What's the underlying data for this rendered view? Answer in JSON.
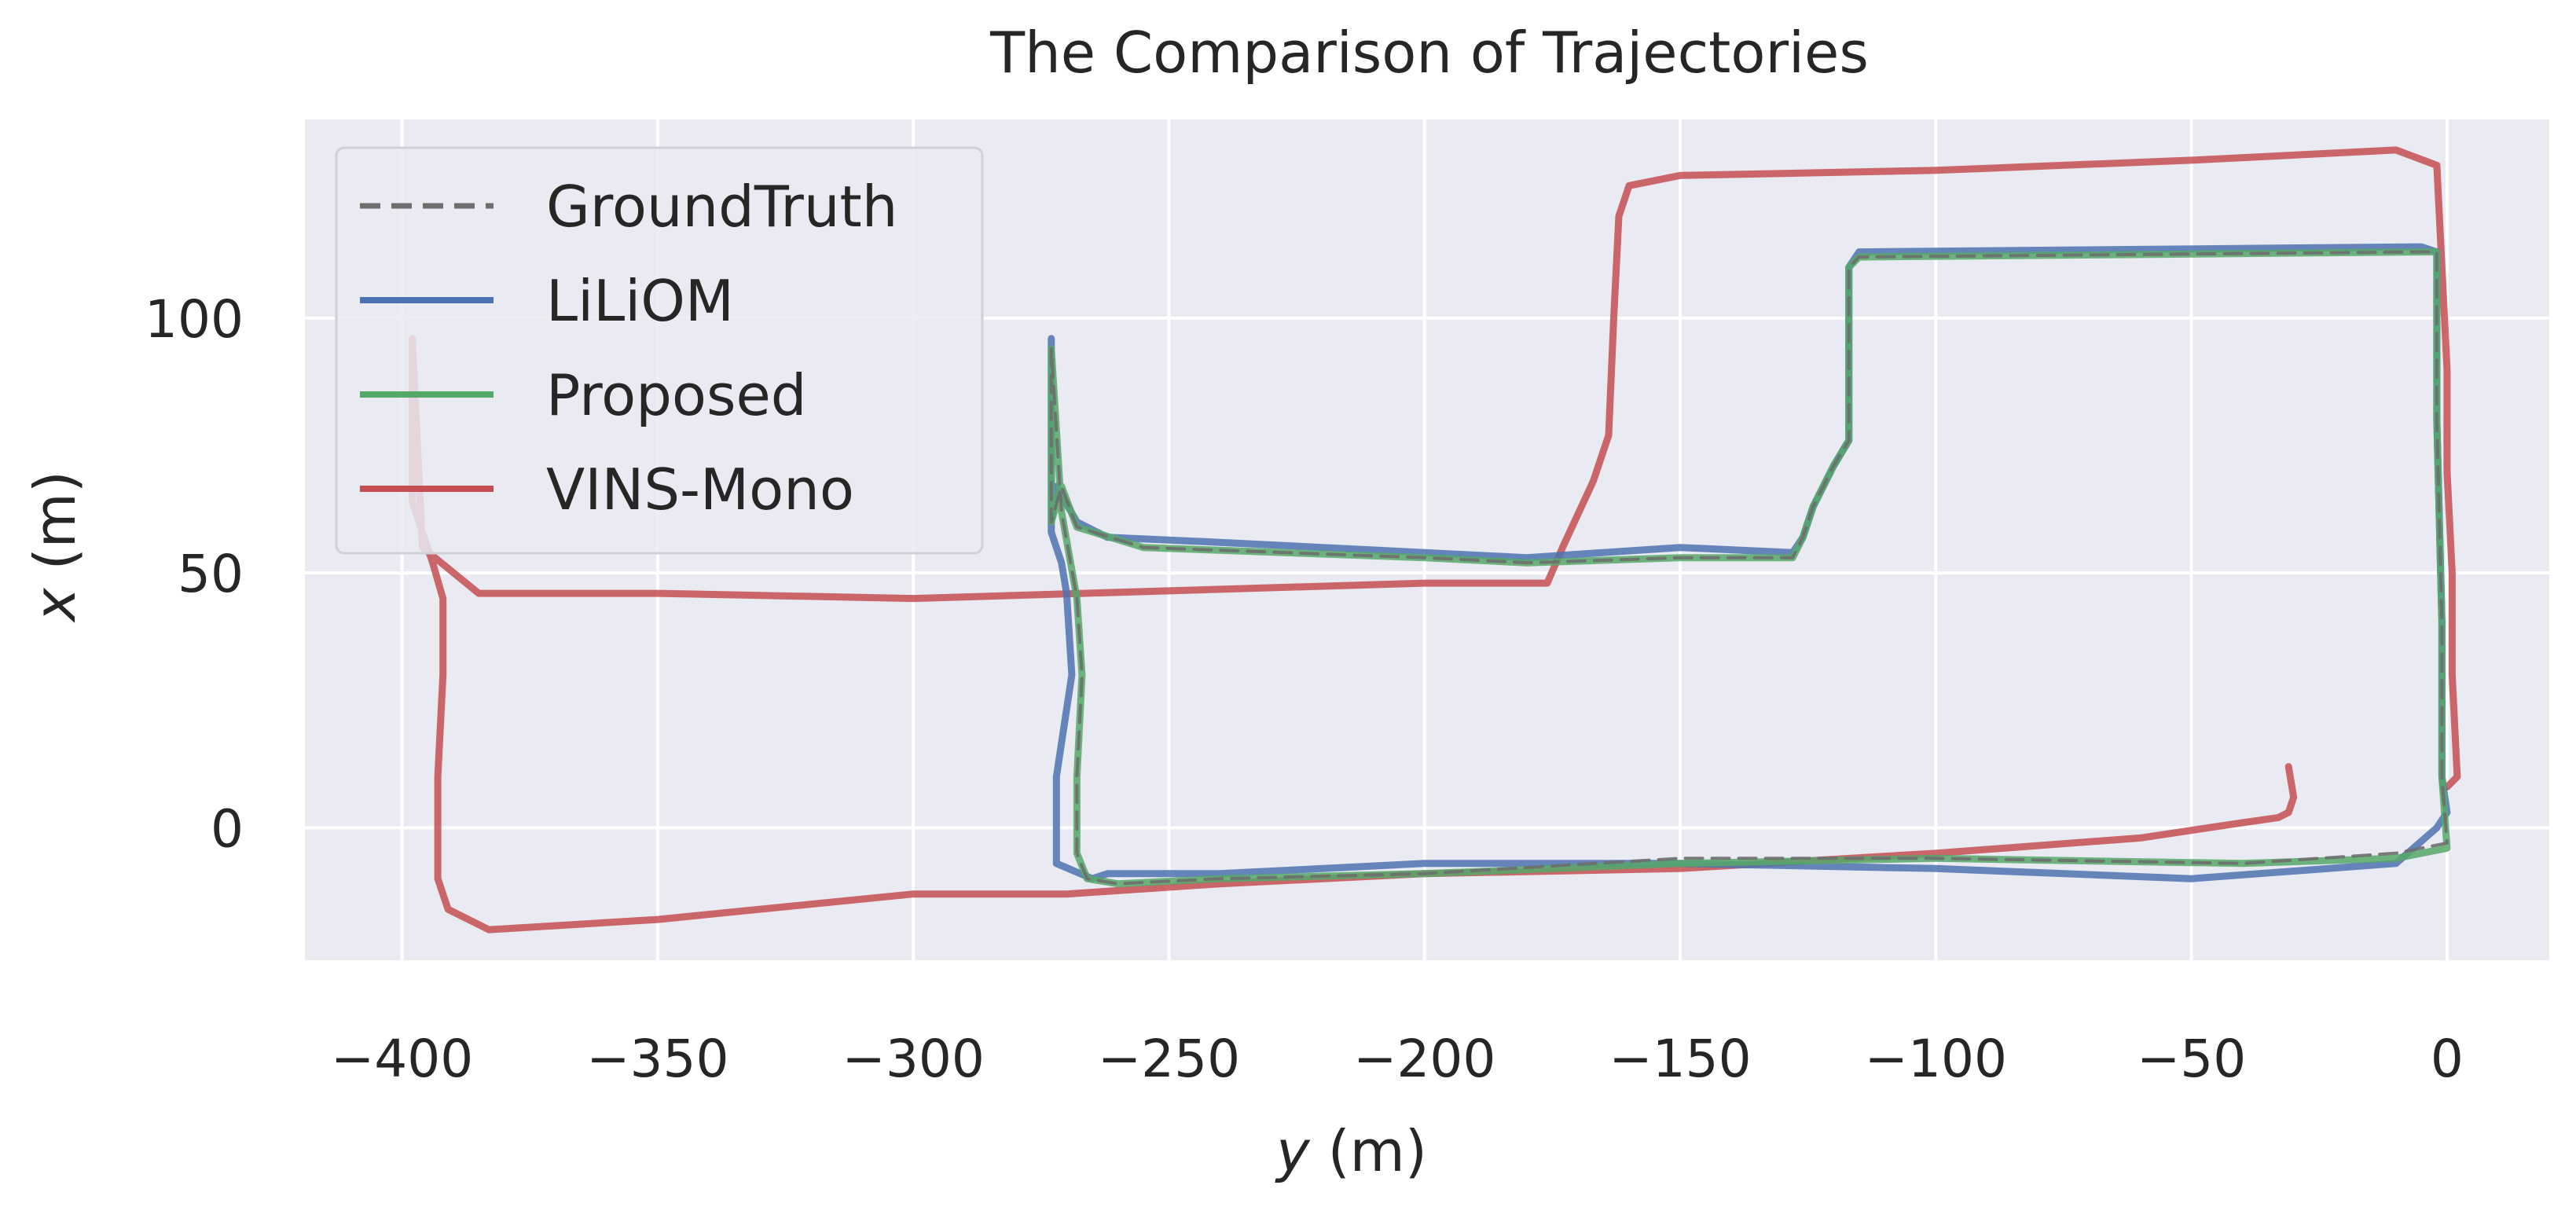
{
  "chart_data": {
    "type": "line",
    "title": "The Comparison of Trajectories",
    "xlabel": {
      "var": "y",
      "unit": " (m)"
    },
    "ylabel": {
      "var": "x",
      "unit": " (m)"
    },
    "xlim": [
      -419,
      20
    ],
    "ylim": [
      -26,
      139
    ],
    "xticks": [
      -400,
      -350,
      -300,
      -250,
      -200,
      -150,
      -100,
      -50,
      0
    ],
    "xtick_labels": [
      "−400",
      "−350",
      "−300",
      "−250",
      "−200",
      "−150",
      "−100",
      "−50",
      "0"
    ],
    "yticks": [
      0,
      50,
      100
    ],
    "ytick_labels": [
      "0",
      "50",
      "100"
    ],
    "grid": true,
    "legend": "top-left",
    "colors": {
      "background": "#eaeaf2",
      "grid": "#ffffff",
      "GroundTruth": "#6e6e6e",
      "LiLiOM": "#4c72b0",
      "Proposed": "#55a868",
      "VINS-Mono": "#c44e52"
    },
    "series": [
      {
        "name": "GroundTruth",
        "style": "dashed",
        "x": [
          -273,
          -273,
          -271,
          -268,
          -255,
          -200,
          -180,
          -150,
          -128,
          -126,
          -124,
          -120,
          -117,
          -117,
          -115,
          -5,
          -2,
          -2,
          -1,
          -1,
          0,
          -10,
          -40,
          -100,
          -150,
          -200,
          -240,
          -260,
          -266,
          -268,
          -268,
          -267,
          -268,
          -271,
          -273
        ],
        "y": [
          94,
          60,
          67,
          59,
          55,
          53,
          52,
          53,
          53,
          57,
          63,
          71,
          76,
          110,
          112,
          113,
          113,
          80,
          40,
          10,
          -3,
          -5,
          -7,
          -6,
          -6,
          -9,
          -10,
          -11,
          -10,
          -5,
          10,
          30,
          45,
          62,
          94
        ]
      },
      {
        "name": "LiLiOM",
        "style": "solid",
        "x": [
          -273,
          -273,
          -272,
          -268,
          -262,
          -240,
          -200,
          -180,
          -150,
          -128,
          -126,
          -124,
          -120,
          -117,
          -117,
          -115,
          -5,
          -2,
          -2,
          -1,
          -1,
          0,
          -2,
          -10,
          -50,
          -100,
          -150,
          -200,
          -240,
          -262,
          -265,
          -272,
          -272,
          -272,
          -269,
          -270,
          -271,
          -273,
          -273,
          -273
        ],
        "y": [
          96,
          60,
          67,
          60,
          57,
          56,
          54,
          53,
          55,
          54,
          57,
          63,
          71,
          76,
          110,
          113,
          114,
          113,
          80,
          40,
          10,
          3,
          0,
          -7,
          -10,
          -8,
          -7,
          -7,
          -9,
          -9,
          -10,
          -7,
          0,
          10,
          30,
          46,
          52,
          58,
          70,
          96
        ]
      },
      {
        "name": "Proposed",
        "style": "solid",
        "x": [
          -273,
          -273,
          -271,
          -268,
          -255,
          -200,
          -180,
          -150,
          -128,
          -126,
          -124,
          -120,
          -117,
          -117,
          -115,
          -5,
          -2,
          -2,
          -1,
          -1,
          0,
          -10,
          -40,
          -100,
          -150,
          -200,
          -240,
          -260,
          -266,
          -268,
          -268,
          -267,
          -268,
          -271,
          -273
        ],
        "y": [
          94,
          60,
          67,
          59,
          55,
          53,
          52,
          53,
          53,
          57,
          63,
          71,
          76,
          110,
          112,
          113,
          113,
          80,
          40,
          10,
          -4,
          -6,
          -7,
          -6,
          -7,
          -9,
          -10,
          -11,
          -10,
          -5,
          10,
          30,
          45,
          62,
          94
        ]
      },
      {
        "name": "VINS-Mono",
        "style": "solid",
        "x": [
          -31,
          -30,
          -31,
          -33,
          -40,
          -60,
          -100,
          -150,
          -200,
          -240,
          -270,
          -300,
          -350,
          -383,
          -391,
          -393,
          -393,
          -392,
          -392,
          -394,
          -396,
          -398,
          -398,
          -396,
          -385,
          -350,
          -300,
          -200,
          -176,
          -173,
          -167,
          -164,
          -163,
          -162,
          -160,
          -150,
          -100,
          -50,
          -10,
          -2,
          -1,
          0,
          0,
          1,
          1,
          2,
          0
        ],
        "y": [
          12,
          6,
          3,
          2,
          1,
          -2,
          -5,
          -8,
          -9,
          -11,
          -13,
          -13,
          -18,
          -20,
          -16,
          -10,
          10,
          30,
          45,
          52,
          58,
          64,
          96,
          55,
          46,
          46,
          45,
          48,
          48,
          55,
          68,
          77,
          100,
          120,
          126,
          128,
          129,
          131,
          133,
          130,
          110,
          90,
          70,
          50,
          30,
          10,
          8
        ]
      }
    ]
  }
}
